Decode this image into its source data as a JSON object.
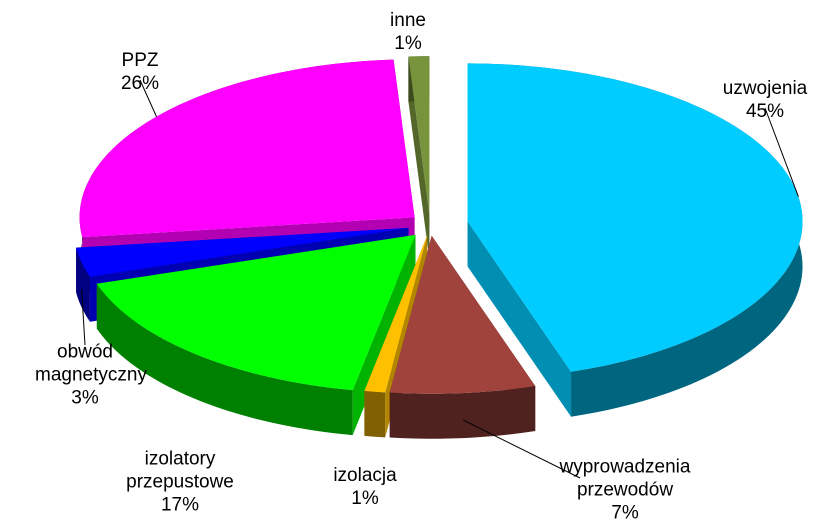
{
  "chart_data": {
    "type": "pie",
    "categories": [
      "uzwojenia",
      "wyprowadzenia przewodów",
      "izolacja",
      "izolatory przepustowe",
      "obwód magnetyczny",
      "PPZ",
      "inne"
    ],
    "values": [
      45,
      7,
      1,
      17,
      3,
      26,
      1
    ],
    "value_labels": [
      "45%",
      "7%",
      "1%",
      "17%",
      "3%",
      "26%",
      "1%"
    ],
    "colors": [
      "#00ccff",
      "#a0433d",
      "#ffc000",
      "#00ff00",
      "#0000ff",
      "#ff00ff",
      "#77933c"
    ]
  }
}
